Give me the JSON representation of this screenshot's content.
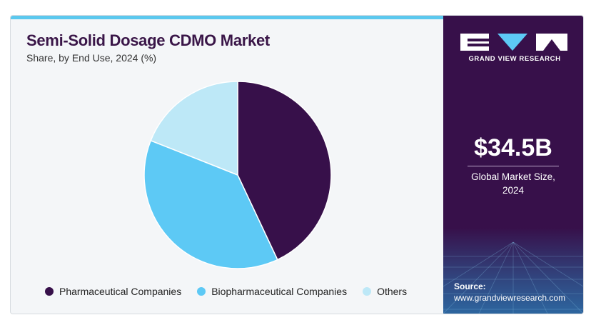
{
  "chart_data": {
    "type": "pie",
    "title": "Semi-Solid Dosage CDMO Market",
    "subtitle": "Share, by End Use, 2024 (%)",
    "categories": [
      "Pharmaceutical Companies",
      "Biopharmaceutical Companies",
      "Others"
    ],
    "values": [
      43,
      38,
      19
    ],
    "colors": [
      "#37104a",
      "#5dc9f5",
      "#bde8f7"
    ],
    "start_angle": "12 o'clock",
    "direction": "clockwise",
    "legend_position": "bottom"
  },
  "side_panel": {
    "brand": "GRAND VIEW RESEARCH",
    "market_value": "$34.5B",
    "market_label_line1": "Global Market Size,",
    "market_label_line2": "2024",
    "source_title": "Source:",
    "source_url": "www.grandviewresearch.com",
    "background_color": "#37104a"
  }
}
